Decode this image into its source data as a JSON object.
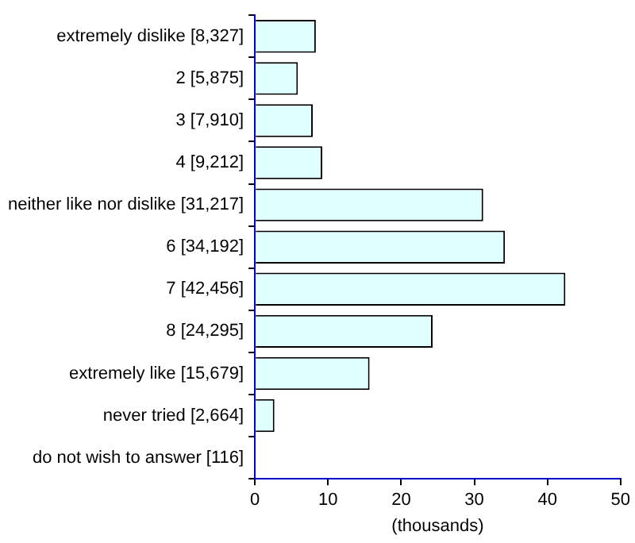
{
  "chart_data": {
    "type": "bar",
    "orientation": "horizontal",
    "xlabel": "(thousands)",
    "categories": [
      "extremely dislike [8,327]",
      "2 [5,875]",
      "3 [7,910]",
      "4 [9,212]",
      "neither like nor dislike [31,217]",
      "6 [34,192]",
      "7 [42,456]",
      "8 [24,295]",
      "extremely like [15,679]",
      "never tried [2,664]",
      "do not wish to answer [116]"
    ],
    "values": [
      8.327,
      5.875,
      7.91,
      9.212,
      31.217,
      34.192,
      42.456,
      24.295,
      15.679,
      2.664,
      0.116
    ],
    "color": "#e0ffff",
    "xlim": [
      0,
      50
    ],
    "xticks": [
      0,
      10,
      20,
      30,
      40,
      50
    ],
    "grid": false,
    "legend": false
  }
}
